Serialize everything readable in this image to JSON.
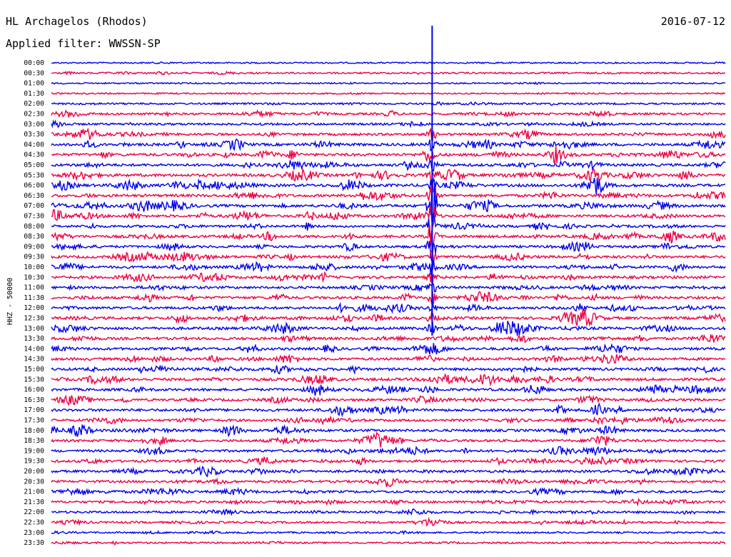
{
  "header": {
    "station": "HL Archagelos (Rhodos)",
    "date": "2016-07-12",
    "filter": "Applied filter: WWSSN-SP"
  },
  "chart_data": {
    "type": "line",
    "title": "HL Archagelos (Rhodos)",
    "subtitle": "Applied filter: WWSSN-SP",
    "date": "2016-07-12",
    "ylabel": "HHZ - 50000",
    "xlabel": "",
    "row_labels": [
      "00:00",
      "00:30",
      "01:00",
      "01:30",
      "02:00",
      "02:30",
      "03:00",
      "03:30",
      "04:00",
      "04:30",
      "05:00",
      "05:30",
      "06:00",
      "06:30",
      "07:00",
      "07:30",
      "08:00",
      "08:30",
      "09:00",
      "09:30",
      "10:00",
      "10:30",
      "11:00",
      "11:30",
      "12:00",
      "12:30",
      "13:00",
      "13:30",
      "14:00",
      "14:30",
      "15:00",
      "15:30",
      "16:00",
      "16:30",
      "17:00",
      "17:30",
      "18:00",
      "18:30",
      "19:00",
      "19:30",
      "20:00",
      "20:30",
      "21:00",
      "21:30",
      "22:00",
      "22:30",
      "23:00",
      "23:30"
    ],
    "series_colors": [
      "#0000ee",
      "#ee0044"
    ],
    "major_event": {
      "row": "07:00",
      "x_fraction": 0.565,
      "peak": 1.0
    },
    "event_rows_amplitude": [
      0.05,
      0.15,
      0.05,
      0.05,
      0.2,
      0.35,
      0.35,
      0.45,
      0.55,
      0.6,
      0.55,
      0.6,
      0.6,
      0.55,
      0.6,
      0.5,
      0.45,
      0.55,
      0.45,
      0.5,
      0.5,
      0.55,
      0.45,
      0.5,
      0.5,
      0.55,
      0.55,
      0.55,
      0.5,
      0.5,
      0.5,
      0.55,
      0.5,
      0.5,
      0.5,
      0.45,
      0.5,
      0.45,
      0.45,
      0.45,
      0.45,
      0.4,
      0.4,
      0.4,
      0.35,
      0.3,
      0.15,
      0.15
    ],
    "grid": false,
    "legend": "none"
  }
}
